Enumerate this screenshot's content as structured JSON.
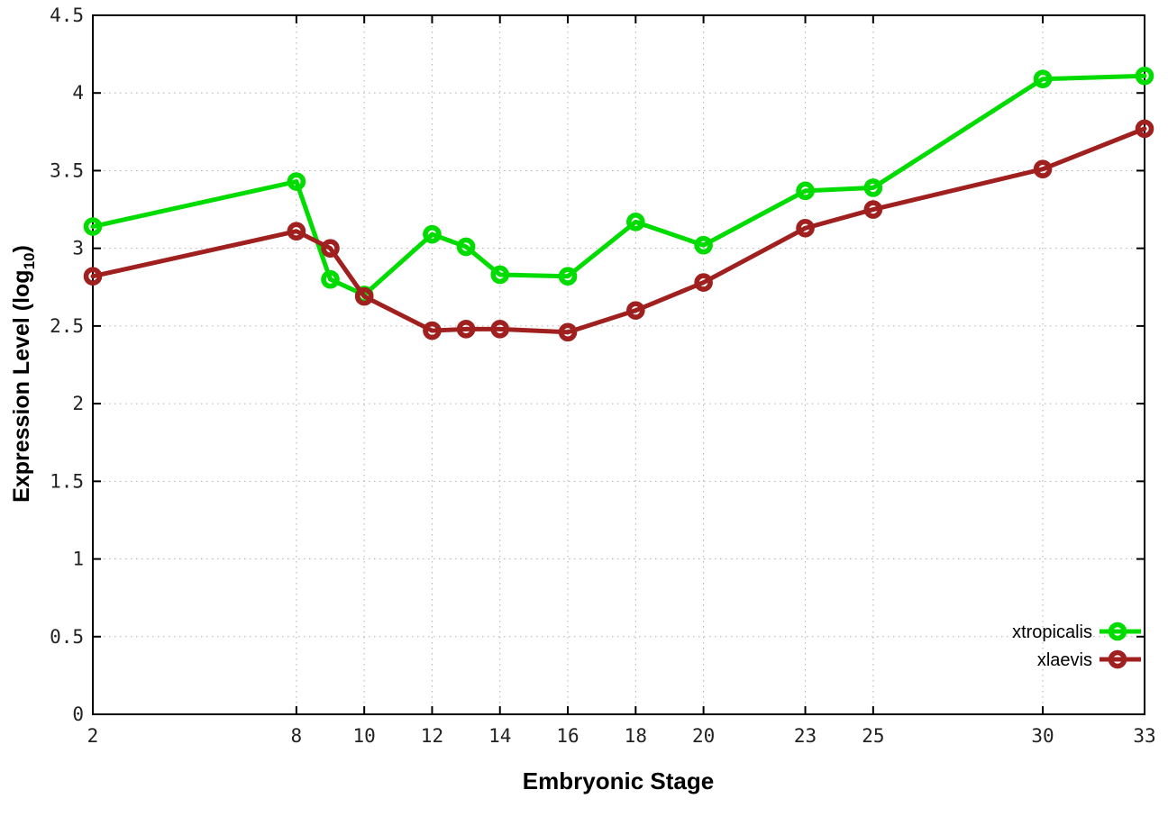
{
  "figure": {
    "background": "#ffffff",
    "border_color": "#000000",
    "grid_color": "#b0b0b0"
  },
  "chart_data": {
    "type": "line",
    "title": "",
    "xlabel": "Embryonic Stage",
    "ylabel": {
      "main": "Expression Level (log",
      "sub": "10",
      "close": ")"
    },
    "xlim": [
      2,
      33
    ],
    "ylim": [
      0,
      4.5
    ],
    "grid": true,
    "legend_position": "bottom-right",
    "x_ticks": [
      2,
      8,
      10,
      12,
      14,
      16,
      18,
      20,
      23,
      25,
      30,
      33
    ],
    "x_tick_labels": [
      "2",
      "8",
      "10",
      "12",
      "14",
      "16",
      "18",
      "20",
      "23",
      "25",
      "30",
      "33"
    ],
    "y_ticks": [
      0,
      0.5,
      1,
      1.5,
      2,
      2.5,
      3,
      3.5,
      4,
      4.5
    ],
    "y_tick_labels": [
      "0",
      "0.5",
      "1",
      "1.5",
      "2",
      "2.5",
      "3",
      "3.5",
      "4",
      "4.5"
    ],
    "x": [
      2,
      8,
      9,
      10,
      12,
      13,
      14,
      16,
      18,
      20,
      23,
      25,
      30,
      33
    ],
    "series": [
      {
        "name": "xtropicalis",
        "color": "#00dc00",
        "values": [
          3.14,
          3.43,
          2.8,
          2.7,
          3.09,
          3.01,
          2.83,
          2.82,
          3.17,
          3.02,
          3.37,
          3.39,
          4.09,
          4.11
        ]
      },
      {
        "name": "xlaevis",
        "color": "#a02020",
        "values": [
          2.82,
          3.11,
          3.0,
          2.69,
          2.47,
          2.48,
          2.48,
          2.46,
          2.6,
          2.78,
          3.13,
          3.25,
          3.51,
          3.77
        ]
      }
    ]
  }
}
